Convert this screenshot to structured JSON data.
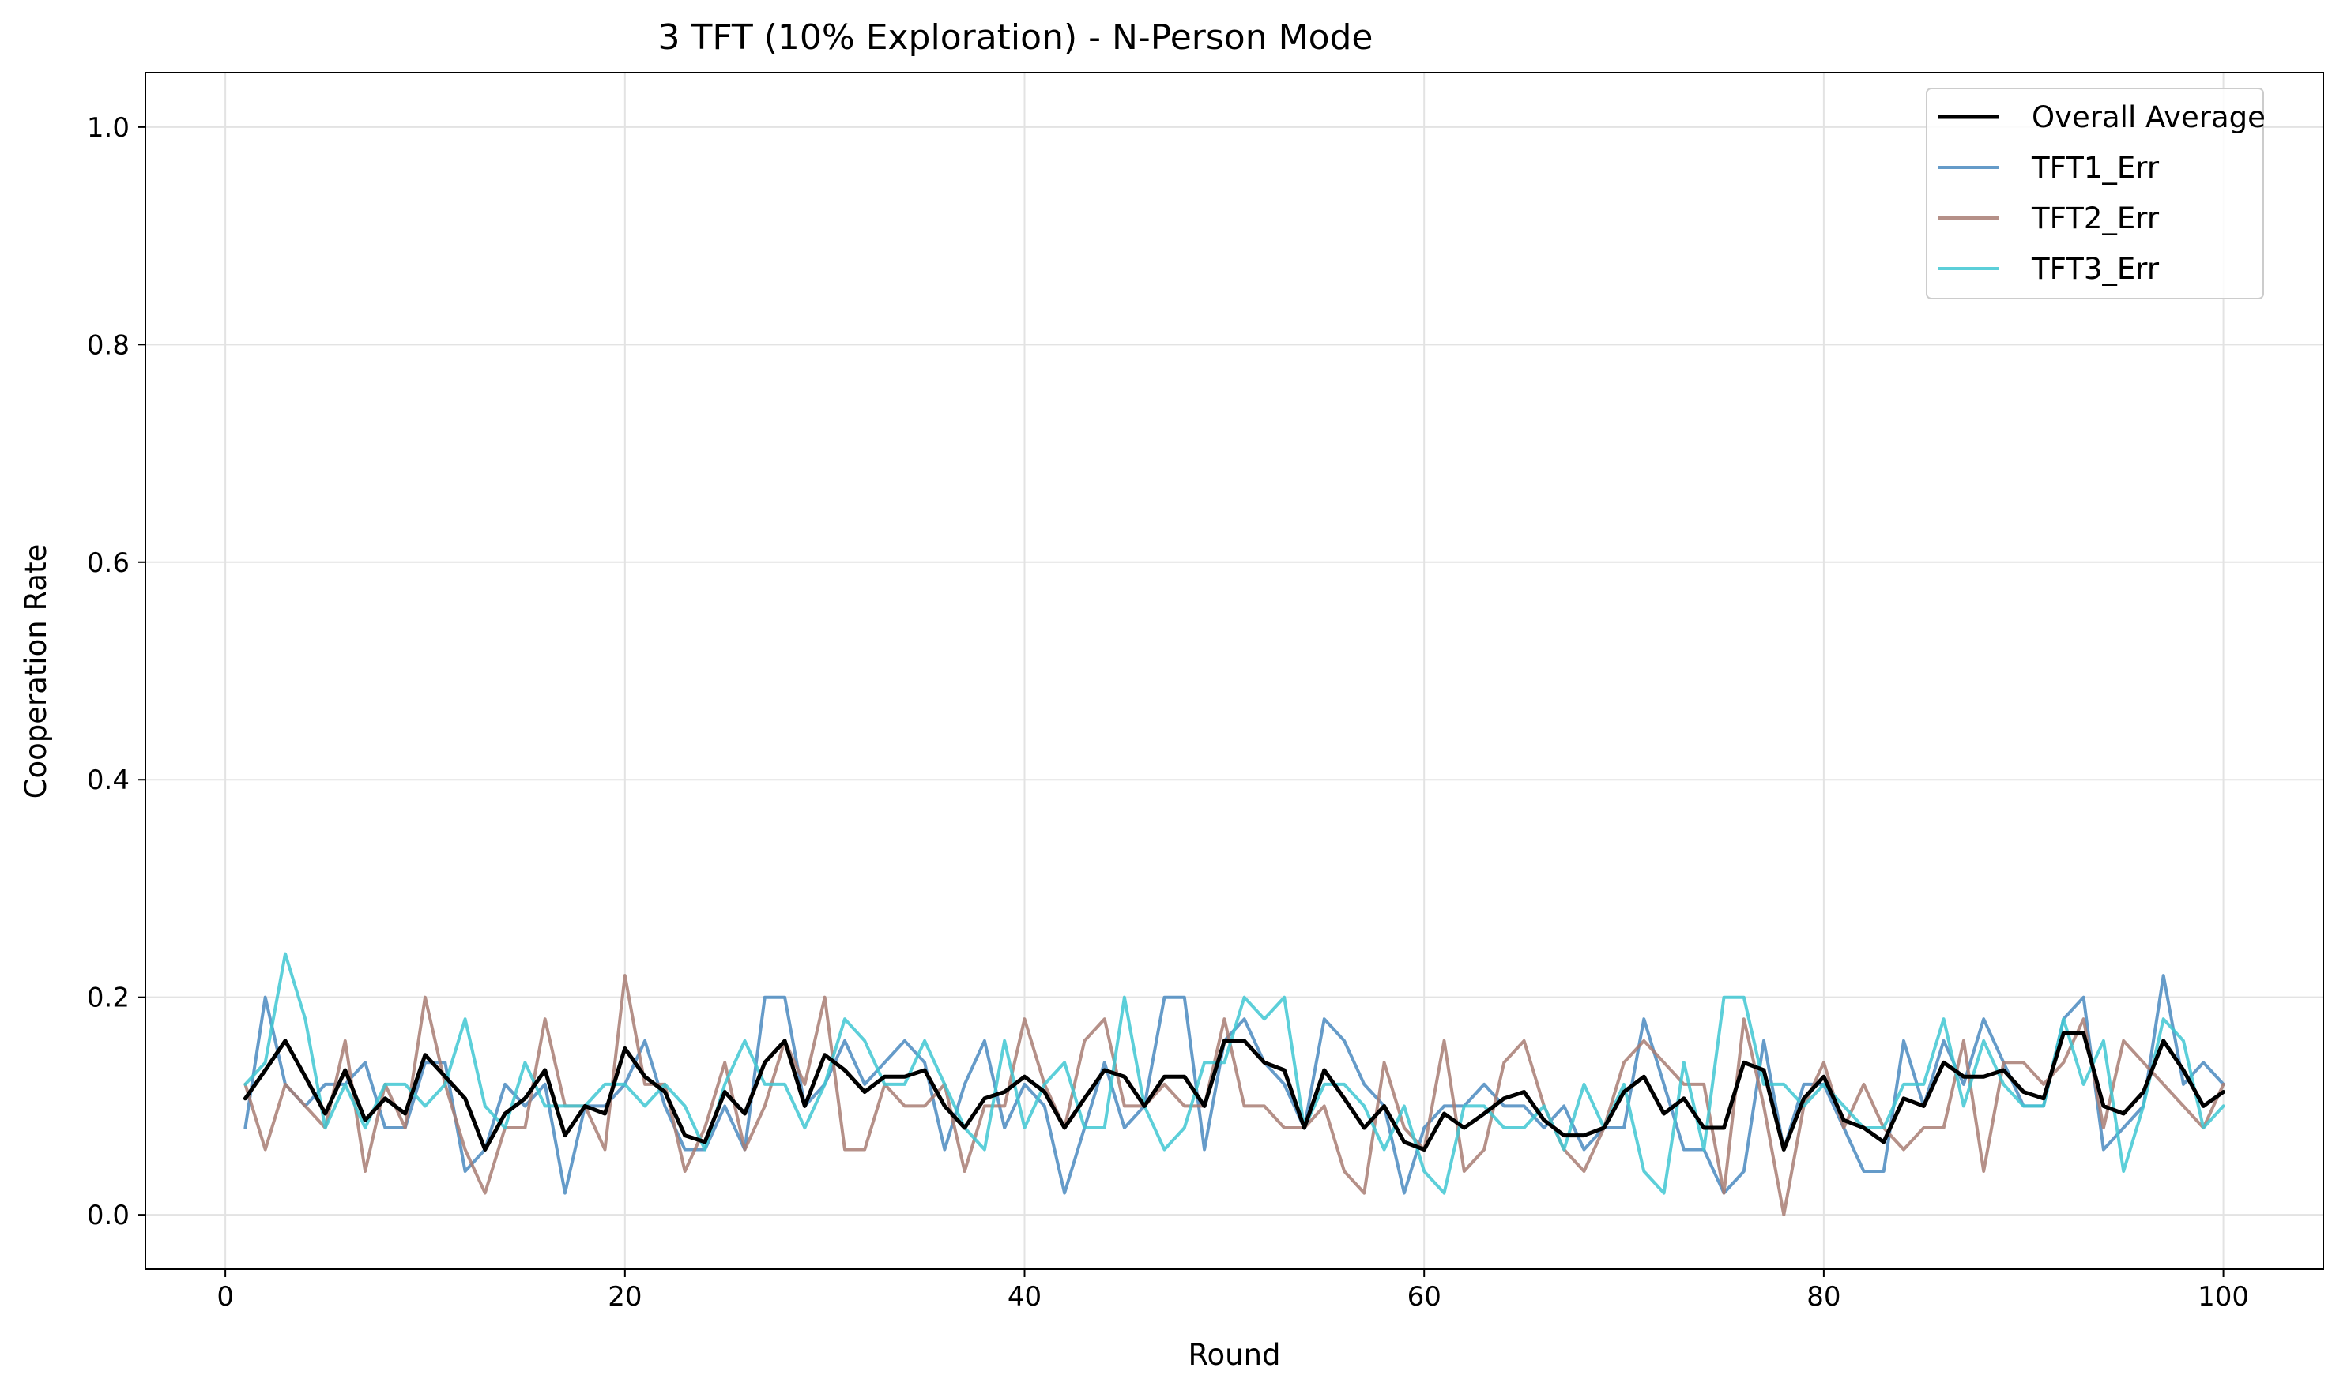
{
  "chart_data": {
    "type": "line",
    "title": "3 TFT (10% Exploration) - N-Person Mode",
    "xlabel": "Round",
    "ylabel": "Cooperation Rate",
    "xlim": [
      -4,
      105
    ],
    "ylim": [
      -0.05,
      1.05
    ],
    "xticks": [
      0,
      20,
      40,
      60,
      80,
      100
    ],
    "yticks": [
      0.0,
      0.2,
      0.4,
      0.6,
      0.8,
      1.0
    ],
    "xtick_labels": [
      "0",
      "20",
      "40",
      "60",
      "80",
      "100"
    ],
    "ytick_labels": [
      "0.0",
      "0.2",
      "0.4",
      "0.6",
      "0.8",
      "1.0"
    ],
    "grid": true,
    "legend_position": "top-right",
    "x": [
      1,
      2,
      3,
      4,
      5,
      6,
      7,
      8,
      9,
      10,
      11,
      12,
      13,
      14,
      15,
      16,
      17,
      18,
      19,
      20,
      21,
      22,
      23,
      24,
      25,
      26,
      27,
      28,
      29,
      30,
      31,
      32,
      33,
      34,
      35,
      36,
      37,
      38,
      39,
      40,
      41,
      42,
      43,
      44,
      45,
      46,
      47,
      48,
      49,
      50,
      51,
      52,
      53,
      54,
      55,
      56,
      57,
      58,
      59,
      60,
      61,
      62,
      63,
      64,
      65,
      66,
      67,
      68,
      69,
      70,
      71,
      72,
      73,
      74,
      75,
      76,
      77,
      78,
      79,
      80,
      81,
      82,
      83,
      84,
      85,
      86,
      87,
      88,
      89,
      90,
      91,
      92,
      93,
      94,
      95,
      96,
      97,
      98,
      99,
      100
    ],
    "series": [
      {
        "name": "Overall Average",
        "color": "#000000",
        "width": 5,
        "opacity": 1,
        "values": [
          0.107,
          0.133,
          0.16,
          0.127,
          0.093,
          0.133,
          0.087,
          0.107,
          0.093,
          0.147,
          0.127,
          0.107,
          0.06,
          0.093,
          0.107,
          0.133,
          0.073,
          0.1,
          0.093,
          0.153,
          0.127,
          0.113,
          0.073,
          0.067,
          0.113,
          0.093,
          0.14,
          0.16,
          0.1,
          0.147,
          0.133,
          0.113,
          0.127,
          0.127,
          0.133,
          0.1,
          0.08,
          0.107,
          0.113,
          0.127,
          0.113,
          0.08,
          0.107,
          0.133,
          0.127,
          0.1,
          0.127,
          0.127,
          0.1,
          0.16,
          0.16,
          0.14,
          0.133,
          0.08,
          0.133,
          0.107,
          0.08,
          0.1,
          0.067,
          0.06,
          0.093,
          0.08,
          0.093,
          0.107,
          0.113,
          0.087,
          0.073,
          0.073,
          0.08,
          0.113,
          0.127,
          0.093,
          0.107,
          0.08,
          0.08,
          0.14,
          0.133,
          0.06,
          0.107,
          0.127,
          0.087,
          0.08,
          0.067,
          0.107,
          0.1,
          0.14,
          0.127,
          0.127,
          0.133,
          0.113,
          0.107,
          0.167,
          0.167,
          0.1,
          0.093,
          0.113,
          0.16,
          0.133,
          0.1,
          0.113
        ]
      },
      {
        "name": "TFT1_Err",
        "color": "#4a8ac0",
        "width": 4,
        "opacity": 0.85,
        "values": [
          0.08,
          0.2,
          0.12,
          0.1,
          0.12,
          0.12,
          0.14,
          0.08,
          0.08,
          0.14,
          0.14,
          0.04,
          0.06,
          0.12,
          0.1,
          0.12,
          0.02,
          0.1,
          0.1,
          0.12,
          0.16,
          0.1,
          0.06,
          0.06,
          0.1,
          0.06,
          0.2,
          0.2,
          0.1,
          0.12,
          0.16,
          0.12,
          0.14,
          0.16,
          0.14,
          0.06,
          0.12,
          0.16,
          0.08,
          0.12,
          0.1,
          0.02,
          0.08,
          0.14,
          0.08,
          0.1,
          0.2,
          0.2,
          0.06,
          0.16,
          0.18,
          0.14,
          0.12,
          0.08,
          0.18,
          0.16,
          0.12,
          0.1,
          0.02,
          0.08,
          0.1,
          0.1,
          0.12,
          0.1,
          0.1,
          0.08,
          0.1,
          0.06,
          0.08,
          0.08,
          0.18,
          0.12,
          0.06,
          0.06,
          0.02,
          0.04,
          0.16,
          0.06,
          0.12,
          0.12,
          0.08,
          0.04,
          0.04,
          0.16,
          0.1,
          0.16,
          0.12,
          0.18,
          0.14,
          0.1,
          0.1,
          0.18,
          0.2,
          0.06,
          0.08,
          0.1,
          0.22,
          0.12,
          0.14,
          0.12
        ]
      },
      {
        "name": "TFT2_Err",
        "color": "#a87d73",
        "width": 4,
        "opacity": 0.85,
        "values": [
          0.12,
          0.06,
          0.12,
          0.1,
          0.08,
          0.16,
          0.04,
          0.12,
          0.08,
          0.2,
          0.12,
          0.06,
          0.02,
          0.08,
          0.08,
          0.18,
          0.1,
          0.1,
          0.06,
          0.22,
          0.12,
          0.12,
          0.04,
          0.08,
          0.14,
          0.06,
          0.1,
          0.16,
          0.12,
          0.2,
          0.06,
          0.06,
          0.12,
          0.1,
          0.1,
          0.12,
          0.04,
          0.1,
          0.1,
          0.18,
          0.12,
          0.08,
          0.16,
          0.18,
          0.1,
          0.1,
          0.12,
          0.1,
          0.1,
          0.18,
          0.1,
          0.1,
          0.08,
          0.08,
          0.1,
          0.04,
          0.02,
          0.14,
          0.08,
          0.06,
          0.16,
          0.04,
          0.06,
          0.14,
          0.16,
          0.1,
          0.06,
          0.04,
          0.08,
          0.14,
          0.16,
          0.14,
          0.12,
          0.12,
          0.02,
          0.18,
          0.1,
          0.0,
          0.1,
          0.14,
          0.08,
          0.12,
          0.08,
          0.06,
          0.08,
          0.08,
          0.16,
          0.04,
          0.14,
          0.14,
          0.12,
          0.14,
          0.18,
          0.08,
          0.16,
          0.14,
          0.12,
          0.1,
          0.08,
          0.12
        ]
      },
      {
        "name": "TFT3_Err",
        "color": "#3fc7d2",
        "width": 4,
        "opacity": 0.85,
        "values": [
          0.12,
          0.14,
          0.24,
          0.18,
          0.08,
          0.12,
          0.08,
          0.12,
          0.12,
          0.1,
          0.12,
          0.18,
          0.1,
          0.08,
          0.14,
          0.1,
          0.1,
          0.1,
          0.12,
          0.12,
          0.1,
          0.12,
          0.1,
          0.06,
          0.12,
          0.16,
          0.12,
          0.12,
          0.08,
          0.12,
          0.18,
          0.16,
          0.12,
          0.12,
          0.16,
          0.12,
          0.08,
          0.06,
          0.16,
          0.08,
          0.12,
          0.14,
          0.08,
          0.08,
          0.2,
          0.1,
          0.06,
          0.08,
          0.14,
          0.14,
          0.2,
          0.18,
          0.2,
          0.08,
          0.12,
          0.12,
          0.1,
          0.06,
          0.1,
          0.04,
          0.02,
          0.1,
          0.1,
          0.08,
          0.08,
          0.1,
          0.06,
          0.12,
          0.08,
          0.12,
          0.04,
          0.02,
          0.14,
          0.06,
          0.2,
          0.2,
          0.12,
          0.12,
          0.1,
          0.12,
          0.1,
          0.08,
          0.08,
          0.12,
          0.12,
          0.18,
          0.1,
          0.16,
          0.12,
          0.1,
          0.1,
          0.18,
          0.12,
          0.16,
          0.04,
          0.1,
          0.18,
          0.16,
          0.08,
          0.1
        ]
      }
    ]
  }
}
